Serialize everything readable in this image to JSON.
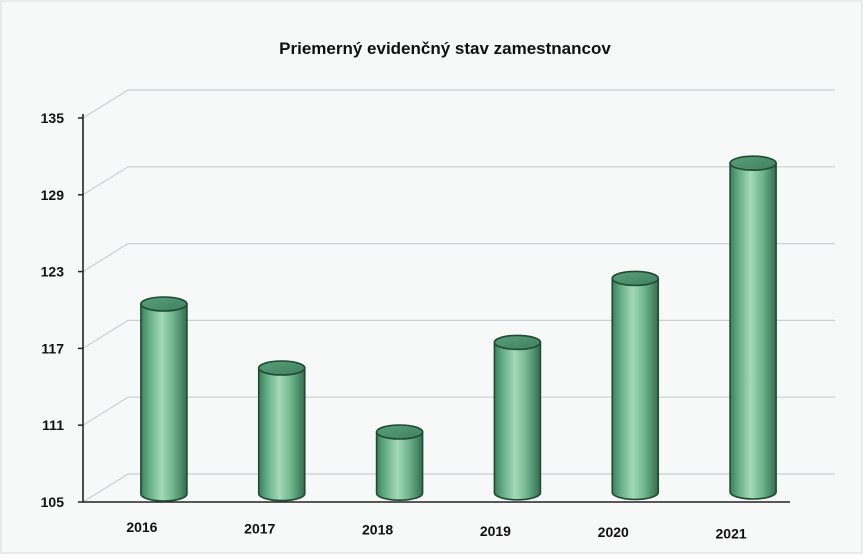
{
  "chart_data": {
    "type": "bar",
    "title": "Priemerný evidenčný stav zamestnancov",
    "categories": [
      "2016",
      "2017",
      "2018",
      "2019",
      "2020",
      "2021"
    ],
    "values": [
      120,
      115,
      110,
      117,
      122,
      131
    ],
    "ylim": [
      105,
      135
    ],
    "yticks": [
      105,
      111,
      117,
      123,
      129,
      135
    ],
    "grid": true,
    "legend": "none",
    "bar_style": "3d-cylinder",
    "bar_color": "#5fae80"
  }
}
